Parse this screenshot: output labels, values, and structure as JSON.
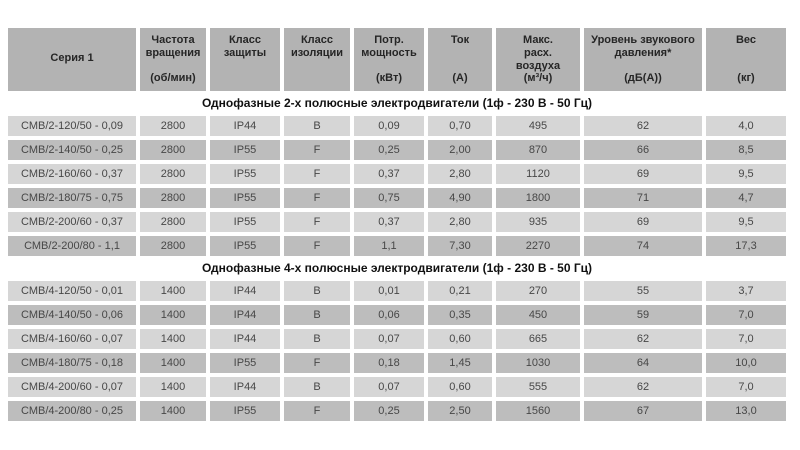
{
  "colors": {
    "header_bg": "#b3b3b3",
    "row_light": "#d6d6d6",
    "row_dark": "#bdbdbd",
    "section_bg": "#ffffff",
    "header_text": "#262626",
    "cell_text": "#474747",
    "section_text": "#111111",
    "page_bg": "#ffffff"
  },
  "table": {
    "columns": [
      {
        "label": "Серия 1",
        "unit": ""
      },
      {
        "label": "Частота\nвращения",
        "unit": "(об/мин)"
      },
      {
        "label": "Класс\nзащиты",
        "unit": ""
      },
      {
        "label": "Класс\nизоляции",
        "unit": ""
      },
      {
        "label": "Потр.\nмощность",
        "unit": "(кВт)"
      },
      {
        "label": "Ток",
        "unit": "(А)"
      },
      {
        "label": "Макс.\nрасх.\nвоздуха",
        "unit": "(м³/ч)"
      },
      {
        "label": "Уровень звукового\nдавления*",
        "unit": "(дБ(А))"
      },
      {
        "label": "Вес",
        "unit": "(кг)"
      }
    ],
    "sections": [
      {
        "title": "Однофазные 2-х полюсные электродвигатели (1ф - 230 В - 50 Гц)",
        "rows": [
          [
            "СМВ/2-120/50 - 0,09",
            "2800",
            "IP44",
            "B",
            "0,09",
            "0,70",
            "495",
            "62",
            "4,0"
          ],
          [
            "СМВ/2-140/50 - 0,25",
            "2800",
            "IP55",
            "F",
            "0,25",
            "2,00",
            "870",
            "66",
            "8,5"
          ],
          [
            "СМВ/2-160/60 - 0,37",
            "2800",
            "IP55",
            "F",
            "0,37",
            "2,80",
            "1120",
            "69",
            "9,5"
          ],
          [
            "СМВ/2-180/75 - 0,75",
            "2800",
            "IP55",
            "F",
            "0,75",
            "4,90",
            "1800",
            "71",
            "4,7"
          ],
          [
            "СМВ/2-200/60 - 0,37",
            "2800",
            "IP55",
            "F",
            "0,37",
            "2,80",
            "935",
            "69",
            "9,5"
          ],
          [
            "СМВ/2-200/80 - 1,1",
            "2800",
            "IP55",
            "F",
            "1,1",
            "7,30",
            "2270",
            "74",
            "17,3"
          ]
        ]
      },
      {
        "title": "Однофазные 4-х полюсные электродвигатели (1ф - 230 В - 50 Гц)",
        "rows": [
          [
            "СМВ/4-120/50 - 0,01",
            "1400",
            "IP44",
            "B",
            "0,01",
            "0,21",
            "270",
            "55",
            "3,7"
          ],
          [
            "СМВ/4-140/50 - 0,06",
            "1400",
            "IP44",
            "B",
            "0,06",
            "0,35",
            "450",
            "59",
            "7,0"
          ],
          [
            "СМВ/4-160/60 - 0,07",
            "1400",
            "IP44",
            "B",
            "0,07",
            "0,60",
            "665",
            "62",
            "7,0"
          ],
          [
            "СМВ/4-180/75 - 0,18",
            "1400",
            "IP55",
            "F",
            "0,18",
            "1,45",
            "1030",
            "64",
            "10,0"
          ],
          [
            "СМВ/4-200/60 - 0,07",
            "1400",
            "IP44",
            "B",
            "0,07",
            "0,60",
            "555",
            "62",
            "7,0"
          ],
          [
            "СМВ/4-200/80 - 0,25",
            "1400",
            "IP55",
            "F",
            "0,25",
            "2,50",
            "1560",
            "67",
            "13,0"
          ]
        ]
      }
    ]
  }
}
